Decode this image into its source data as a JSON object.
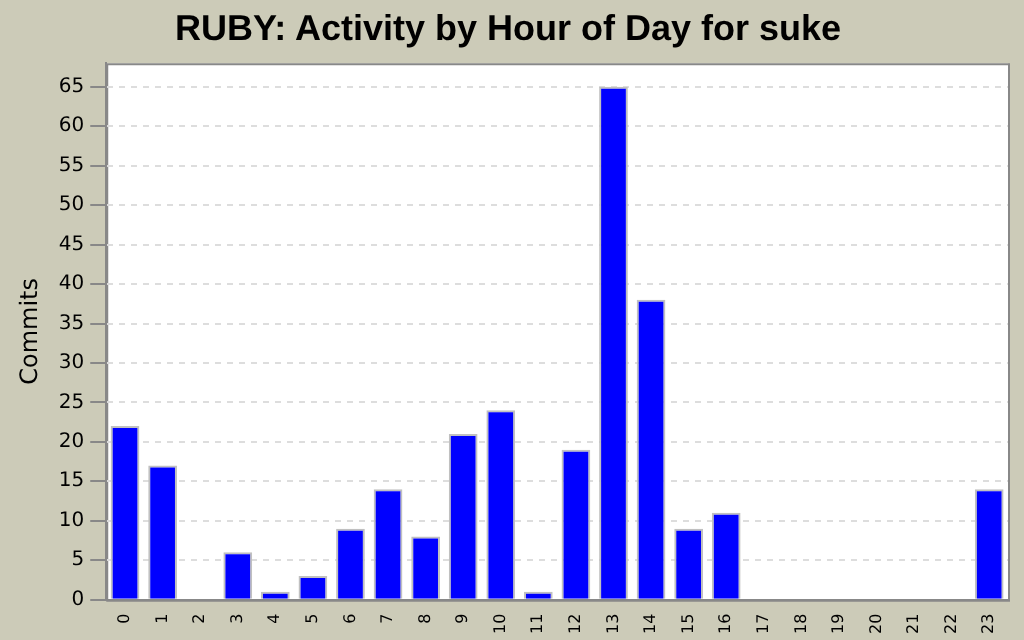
{
  "chart_data": {
    "type": "bar",
    "title": "RUBY: Activity by Hour of Day for suke",
    "ylabel": "Commits",
    "categories": [
      "0",
      "1",
      "2",
      "3",
      "4",
      "5",
      "6",
      "7",
      "8",
      "9",
      "10",
      "11",
      "12",
      "13",
      "14",
      "15",
      "16",
      "17",
      "18",
      "19",
      "20",
      "21",
      "22",
      "23"
    ],
    "values": [
      22,
      17,
      0,
      6,
      1,
      3,
      9,
      14,
      8,
      21,
      24,
      1,
      19,
      65,
      38,
      9,
      11,
      0,
      0,
      0,
      0,
      0,
      0,
      14
    ],
    "color": "#0000ff",
    "ylim": [
      0,
      68
    ],
    "yticks": [
      0,
      5,
      10,
      15,
      20,
      25,
      30,
      35,
      40,
      45,
      50,
      55,
      60,
      65
    ],
    "grid": "y",
    "legend": false
  }
}
